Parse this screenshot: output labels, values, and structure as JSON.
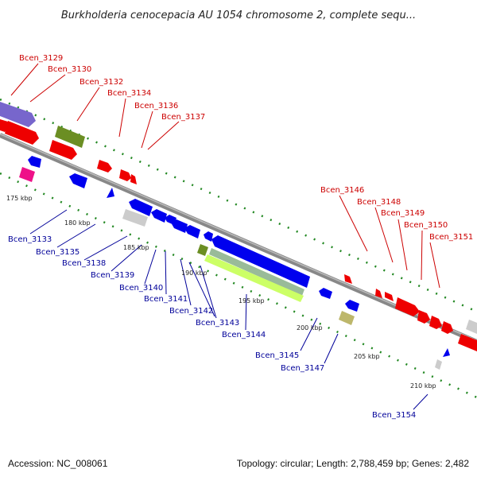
{
  "title": "Burkholderia cenocepacia AU 1054 chromosome 2, complete sequ...",
  "footer": {
    "accession": "Accession: NC_008061",
    "summary": "Topology: circular; Length: 2,788,459 bp; Genes: 2,482"
  },
  "genes_top": [
    "Bcen_3129",
    "Bcen_3130",
    "Bcen_3132",
    "Bcen_3134",
    "Bcen_3136",
    "Bcen_3137",
    "Bcen_3146",
    "Bcen_3148",
    "Bcen_3149",
    "Bcen_3150",
    "Bcen_3151"
  ],
  "genes_bottom": [
    "Bcen_3133",
    "Bcen_3135",
    "Bcen_3138",
    "Bcen_3139",
    "Bcen_3140",
    "Bcen_3141",
    "Bcen_3142",
    "Bcen_3143",
    "Bcen_3144",
    "Bcen_3145",
    "Bcen_3147",
    "Bcen_3154"
  ],
  "tick_labels": [
    "175 kbp",
    "180 kbp",
    "185 kbp",
    "190 kbp",
    "195 kbp",
    "200 kbp",
    "205 kbp",
    "210 kbp"
  ],
  "colors": {
    "forward_label": "#cc0000",
    "reverse_label": "#000099",
    "gene_red": "#ee0000",
    "gene_blue": "#0000ee",
    "gene_purple": "#7766cc",
    "gene_olive": "#6b8e23",
    "gene_magenta": "#ee1188",
    "gene_grey": "#cccccc",
    "gene_khaki": "#bdb76b",
    "gene_lime": "#ccff66",
    "gene_sage": "#99bb99",
    "backbone": "#888888",
    "ticks": "#228822"
  }
}
